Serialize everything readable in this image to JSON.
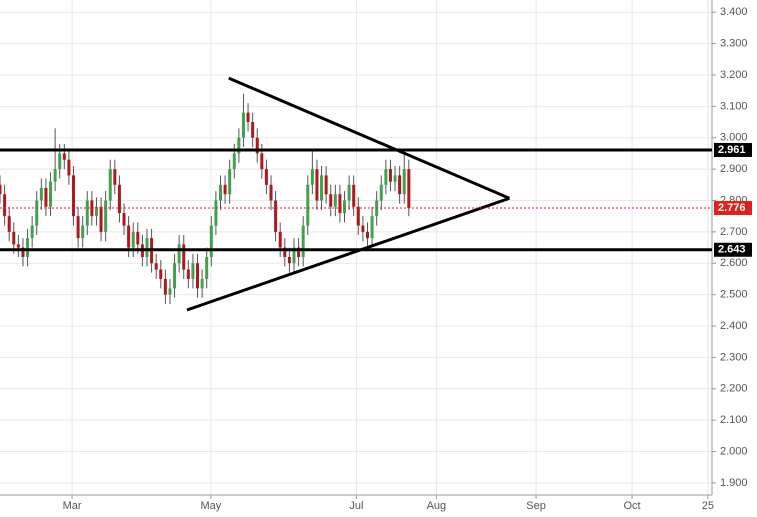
{
  "chart_data": {
    "type": "candlestick",
    "up_color": "#3fa34d",
    "down_color": "#b0171f",
    "grid": true,
    "xlim": [
      0,
      155
    ],
    "xticks": [
      {
        "value": 15.7,
        "label": "Mar"
      },
      {
        "value": 45.9,
        "label": "May"
      },
      {
        "value": 77.6,
        "label": "Jul"
      },
      {
        "value": 95,
        "label": "Aug"
      },
      {
        "value": 116.7,
        "label": "Sep"
      },
      {
        "value": 137.6,
        "label": "Oct"
      },
      {
        "value": 154.1,
        "label": "25"
      }
    ],
    "ylim": [
      1.8615,
      3.4389
    ],
    "yticks": [
      {
        "value": 3.4,
        "label": "3.400"
      },
      {
        "value": 3.3,
        "label": "3.300"
      },
      {
        "value": 3.2,
        "label": "3.200"
      },
      {
        "value": 3.1,
        "label": "3.100"
      },
      {
        "value": 3.0,
        "label": "3.000"
      },
      {
        "value": 2.9,
        "label": "2.900"
      },
      {
        "value": 2.8,
        "label": "2.800"
      },
      {
        "value": 2.7,
        "label": "2.700"
      },
      {
        "value": 2.6,
        "label": "2.600"
      },
      {
        "value": 2.5,
        "label": "2.500"
      },
      {
        "value": 2.4,
        "label": "2.400"
      },
      {
        "value": 2.3,
        "label": "2.300"
      },
      {
        "value": 2.2,
        "label": "2.200"
      },
      {
        "value": 2.1,
        "label": "2.100"
      },
      {
        "value": 2.0,
        "label": "2.000"
      },
      {
        "value": 1.9,
        "label": "1.900"
      }
    ],
    "levels": [
      {
        "value": 2.961,
        "color": "#000000",
        "style": "solid"
      },
      {
        "value": 2.643,
        "color": "#000000",
        "style": "solid"
      },
      {
        "value": 2.776,
        "color": "#e0201c",
        "style": "dotted"
      }
    ],
    "trendlines": [
      {
        "x": [
          49.8,
          110.9
        ],
        "y": [
          3.19,
          2.807
        ]
      },
      {
        "x": [
          40.7,
          110.9
        ],
        "y": [
          2.451,
          2.807
        ]
      }
    ],
    "candles": [
      [
        2.85,
        2.88,
        2.79,
        2.82
      ],
      [
        2.82,
        2.85,
        2.72,
        2.75
      ],
      [
        2.75,
        2.78,
        2.67,
        2.7
      ],
      [
        2.7,
        2.73,
        2.63,
        2.66
      ],
      [
        2.66,
        2.69,
        2.62,
        2.65
      ],
      [
        2.65,
        2.68,
        2.59,
        2.62
      ],
      [
        2.62,
        2.71,
        2.59,
        2.68
      ],
      [
        2.68,
        2.75,
        2.65,
        2.72
      ],
      [
        2.72,
        2.83,
        2.69,
        2.8
      ],
      [
        2.8,
        2.87,
        2.77,
        2.84
      ],
      [
        2.84,
        2.87,
        2.75,
        2.78
      ],
      [
        2.78,
        2.89,
        2.75,
        2.86
      ],
      [
        2.86,
        3.03,
        2.83,
        2.9
      ],
      [
        2.9,
        2.98,
        2.87,
        2.95
      ],
      [
        2.95,
        2.98,
        2.9,
        2.93
      ],
      [
        2.93,
        2.96,
        2.85,
        2.88
      ],
      [
        2.88,
        2.91,
        2.72,
        2.75
      ],
      [
        2.75,
        2.78,
        2.65,
        2.68
      ],
      [
        2.68,
        2.75,
        2.65,
        2.72
      ],
      [
        2.72,
        2.83,
        2.69,
        2.8
      ],
      [
        2.8,
        2.83,
        2.72,
        2.75
      ],
      [
        2.75,
        2.81,
        2.72,
        2.78
      ],
      [
        2.78,
        2.81,
        2.67,
        2.7
      ],
      [
        2.7,
        2.83,
        2.67,
        2.8
      ],
      [
        2.8,
        2.93,
        2.77,
        2.9
      ],
      [
        2.9,
        2.93,
        2.82,
        2.85
      ],
      [
        2.85,
        2.88,
        2.73,
        2.76
      ],
      [
        2.76,
        2.79,
        2.69,
        2.72
      ],
      [
        2.72,
        2.75,
        2.62,
        2.65
      ],
      [
        2.65,
        2.73,
        2.62,
        2.7
      ],
      [
        2.7,
        2.73,
        2.63,
        2.66
      ],
      [
        2.66,
        2.69,
        2.59,
        2.62
      ],
      [
        2.62,
        2.71,
        2.59,
        2.68
      ],
      [
        2.68,
        2.71,
        2.57,
        2.6
      ],
      [
        2.6,
        2.63,
        2.55,
        2.58
      ],
      [
        2.58,
        2.61,
        2.52,
        2.55
      ],
      [
        2.55,
        2.58,
        2.47,
        2.5
      ],
      [
        2.5,
        2.55,
        2.47,
        2.52
      ],
      [
        2.52,
        2.63,
        2.49,
        2.6
      ],
      [
        2.6,
        2.69,
        2.57,
        2.66
      ],
      [
        2.66,
        2.69,
        2.55,
        2.58
      ],
      [
        2.58,
        2.61,
        2.52,
        2.55
      ],
      [
        2.55,
        2.63,
        2.52,
        2.6
      ],
      [
        2.6,
        2.63,
        2.49,
        2.52
      ],
      [
        2.52,
        2.58,
        2.49,
        2.55
      ],
      [
        2.55,
        2.65,
        2.52,
        2.62
      ],
      [
        2.62,
        2.75,
        2.59,
        2.72
      ],
      [
        2.72,
        2.83,
        2.69,
        2.8
      ],
      [
        2.8,
        2.88,
        2.77,
        2.85
      ],
      [
        2.85,
        2.88,
        2.79,
        2.82
      ],
      [
        2.82,
        2.93,
        2.79,
        2.9
      ],
      [
        2.9,
        2.98,
        2.87,
        2.95
      ],
      [
        2.95,
        3.03,
        2.92,
        3.0
      ],
      [
        3.0,
        3.14,
        2.97,
        3.08
      ],
      [
        3.08,
        3.11,
        3.02,
        3.05
      ],
      [
        3.05,
        3.08,
        2.97,
        3.0
      ],
      [
        3.0,
        3.03,
        2.92,
        2.95
      ],
      [
        2.95,
        2.98,
        2.87,
        2.9
      ],
      [
        2.9,
        2.93,
        2.82,
        2.85
      ],
      [
        2.85,
        2.88,
        2.77,
        2.8
      ],
      [
        2.8,
        2.83,
        2.67,
        2.7
      ],
      [
        2.7,
        2.73,
        2.62,
        2.65
      ],
      [
        2.65,
        2.68,
        2.59,
        2.62
      ],
      [
        2.62,
        2.65,
        2.57,
        2.6
      ],
      [
        2.6,
        2.68,
        2.57,
        2.65
      ],
      [
        2.65,
        2.68,
        2.59,
        2.62
      ],
      [
        2.62,
        2.75,
        2.59,
        2.72
      ],
      [
        2.72,
        2.88,
        2.69,
        2.85
      ],
      [
        2.85,
        2.96,
        2.82,
        2.9
      ],
      [
        2.9,
        2.93,
        2.77,
        2.8
      ],
      [
        2.8,
        2.91,
        2.77,
        2.88
      ],
      [
        2.88,
        2.91,
        2.79,
        2.82
      ],
      [
        2.82,
        2.85,
        2.75,
        2.78
      ],
      [
        2.78,
        2.85,
        2.75,
        2.82
      ],
      [
        2.82,
        2.85,
        2.73,
        2.76
      ],
      [
        2.76,
        2.83,
        2.73,
        2.8
      ],
      [
        2.8,
        2.88,
        2.77,
        2.85
      ],
      [
        2.85,
        2.88,
        2.75,
        2.78
      ],
      [
        2.78,
        2.81,
        2.69,
        2.72
      ],
      [
        2.72,
        2.75,
        2.67,
        2.7
      ],
      [
        2.7,
        2.73,
        2.65,
        2.68
      ],
      [
        2.68,
        2.78,
        2.65,
        2.75
      ],
      [
        2.75,
        2.83,
        2.72,
        2.8
      ],
      [
        2.8,
        2.88,
        2.77,
        2.85
      ],
      [
        2.85,
        2.93,
        2.82,
        2.9
      ],
      [
        2.9,
        2.93,
        2.83,
        2.86
      ],
      [
        2.86,
        2.91,
        2.83,
        2.88
      ],
      [
        2.88,
        2.91,
        2.79,
        2.82
      ],
      [
        2.82,
        2.95,
        2.79,
        2.9
      ],
      [
        2.9,
        2.93,
        2.75,
        2.776
      ]
    ]
  }
}
